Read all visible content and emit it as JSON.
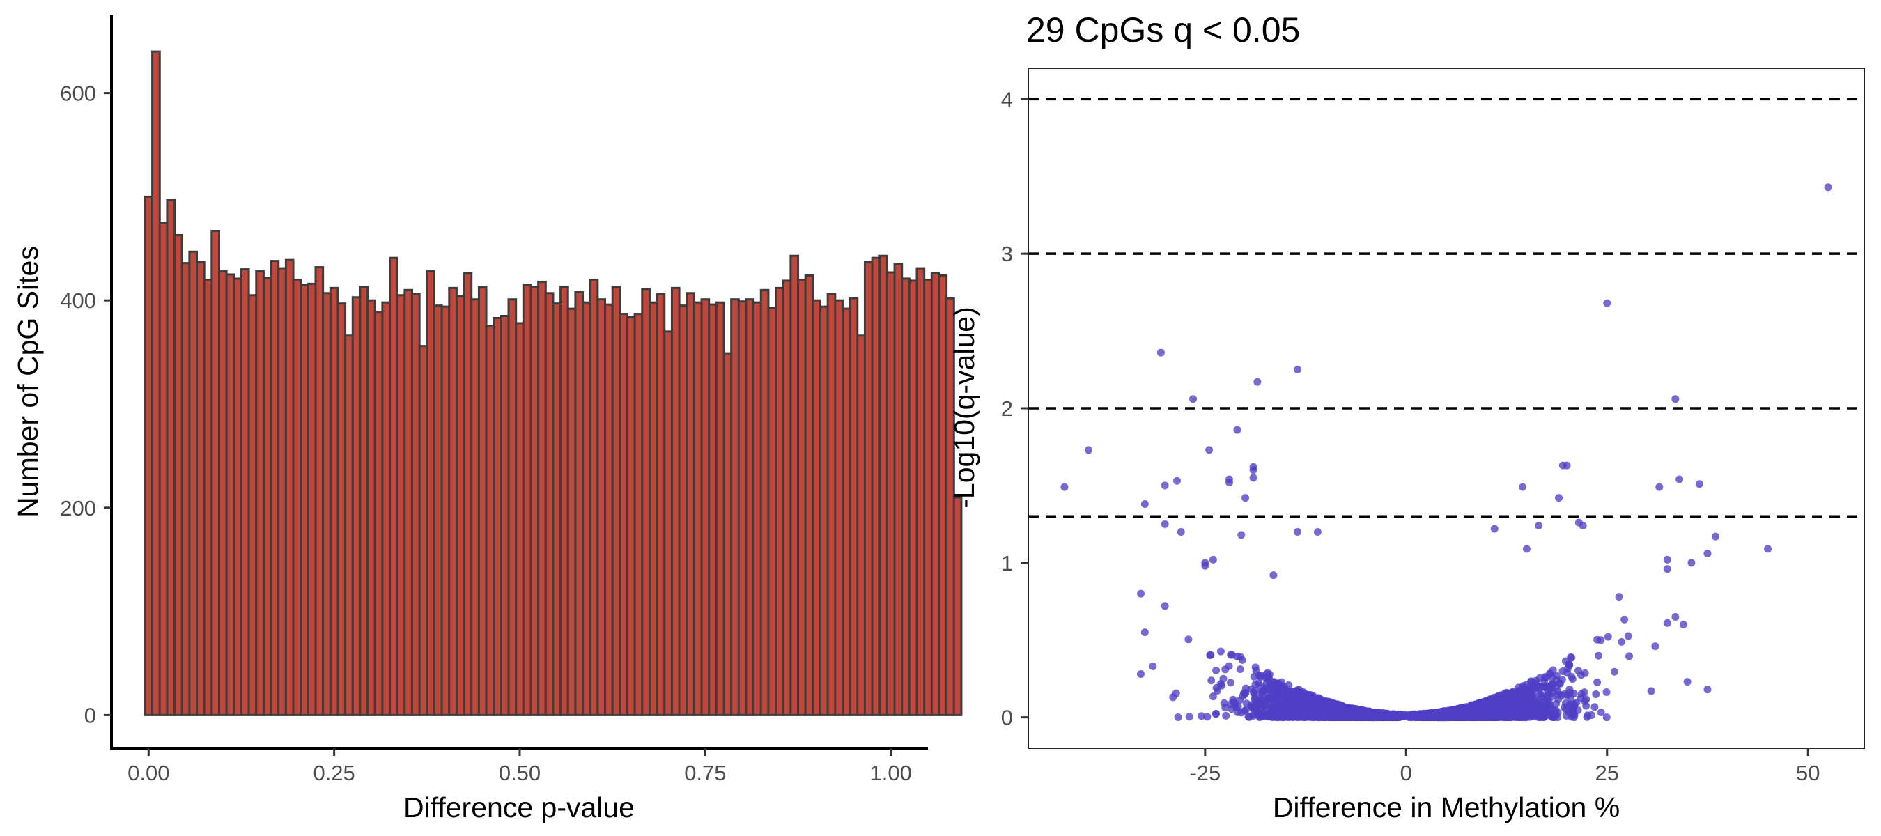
{
  "chart_data": [
    {
      "type": "bar",
      "title": "",
      "xlabel": "Difference p-value",
      "ylabel": "Number of CpG Sites",
      "xlim": [
        -0.05,
        1.05
      ],
      "ylim": [
        -32,
        675
      ],
      "x_ticks": [
        0,
        0.25,
        0.5,
        0.75,
        1
      ],
      "x_tick_labels": [
        "0.00",
        "0.25",
        "0.50",
        "0.75",
        "1.00"
      ],
      "y_ticks": [
        0,
        200,
        400,
        600
      ],
      "y_tick_labels": [
        "0",
        "200",
        "400",
        "600"
      ],
      "bin_width": 0.01,
      "bin_start": -0.005,
      "fill_color": "#c2473a",
      "edge_color": "#3d3d3d",
      "values": [
        500,
        640,
        475,
        497,
        463,
        436,
        447,
        437,
        420,
        467,
        428,
        425,
        421,
        430,
        405,
        428,
        422,
        438,
        431,
        439,
        420,
        415,
        416,
        432,
        407,
        412,
        397,
        366,
        403,
        413,
        400,
        389,
        398,
        441,
        405,
        410,
        406,
        356,
        428,
        395,
        394,
        412,
        404,
        426,
        401,
        413,
        375,
        383,
        385,
        401,
        378,
        415,
        413,
        418,
        407,
        397,
        413,
        392,
        408,
        398,
        420,
        401,
        396,
        413,
        387,
        384,
        387,
        411,
        398,
        406,
        370,
        412,
        395,
        407,
        398,
        401,
        396,
        398,
        349,
        401,
        399,
        401,
        398,
        410,
        393,
        412,
        419,
        443,
        420,
        424,
        400,
        394,
        406,
        400,
        392,
        402,
        366,
        437,
        441,
        443,
        427,
        435,
        421,
        419,
        431,
        420,
        426,
        424,
        402,
        210
      ]
    },
    {
      "type": "scatter",
      "title": "29 CpGs q < 0.05",
      "xlabel": "Difference in Methylation %",
      "ylabel": "-Log10(q-value)",
      "xlim": [
        -47,
        57
      ],
      "ylim": [
        -0.2,
        4.2
      ],
      "x_ticks": [
        -25,
        0,
        25,
        50
      ],
      "x_tick_labels": [
        "-25",
        "0",
        "25",
        "50"
      ],
      "y_ticks": [
        0,
        1,
        2,
        3,
        4
      ],
      "y_tick_labels": [
        "0",
        "1",
        "2",
        "3",
        "4"
      ],
      "hlines": [
        1.3,
        2,
        3,
        4
      ],
      "point_color": "#4f3fc4",
      "notable_points": [
        [
          52.5,
          3.43
        ],
        [
          25,
          2.68
        ],
        [
          -30.5,
          2.36
        ],
        [
          -13.5,
          2.25
        ],
        [
          -26.5,
          2.06
        ],
        [
          -18.5,
          2.17
        ],
        [
          -21,
          1.86
        ],
        [
          33.5,
          2.06
        ],
        [
          -39.5,
          1.73
        ],
        [
          -42.5,
          1.49
        ],
        [
          -28.5,
          1.53
        ],
        [
          -30,
          1.5
        ],
        [
          -32.5,
          1.38
        ],
        [
          -24.5,
          1.73
        ],
        [
          -22,
          1.52
        ],
        [
          -22,
          1.54
        ],
        [
          -19,
          1.62
        ],
        [
          -19,
          1.6
        ],
        [
          -19,
          1.55
        ],
        [
          -20,
          1.42
        ],
        [
          19.5,
          1.63
        ],
        [
          20,
          1.63
        ],
        [
          19,
          1.42
        ],
        [
          14.5,
          1.49
        ],
        [
          31.5,
          1.49
        ],
        [
          34,
          1.54
        ],
        [
          36.5,
          1.51
        ],
        [
          -30,
          1.25
        ],
        [
          -28,
          1.2
        ],
        [
          -20.5,
          1.18
        ],
        [
          -13.5,
          1.2
        ],
        [
          -11,
          1.2
        ],
        [
          11,
          1.22
        ],
        [
          16.5,
          1.24
        ],
        [
          21.5,
          1.26
        ],
        [
          22,
          1.24
        ],
        [
          38.5,
          1.17
        ],
        [
          45,
          1.09
        ],
        [
          37.5,
          1.06
        ],
        [
          35.5,
          1.0
        ],
        [
          32.5,
          1.02
        ],
        [
          32.5,
          0.96
        ],
        [
          15,
          1.09
        ],
        [
          -25,
          1.0
        ],
        [
          -24,
          1.02
        ],
        [
          -25,
          0.98
        ],
        [
          -16.5,
          0.92
        ],
        [
          -33,
          0.8
        ],
        [
          -30,
          0.72
        ],
        [
          26.5,
          0.78
        ],
        [
          33.5,
          0.65
        ],
        [
          32.5,
          0.61
        ],
        [
          34.5,
          0.6
        ],
        [
          31,
          0.46
        ],
        [
          35,
          0.23
        ],
        [
          37.5,
          0.18
        ],
        [
          30.5,
          0.17
        ],
        [
          -31.5,
          0.33
        ],
        [
          -29,
          0.13
        ],
        [
          -33,
          0.28
        ],
        [
          -32.5,
          0.55
        ]
      ],
      "cloud_count": 3600
    }
  ]
}
